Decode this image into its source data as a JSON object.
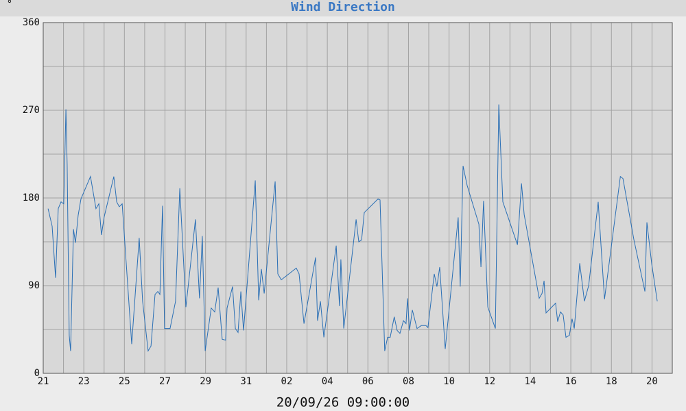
{
  "chart_data": {
    "type": "line",
    "title": "Wind Direction",
    "ylabel": "°",
    "xlabel": "20/09/26 09:00:00",
    "color": "#2a6fb5",
    "xlim": [
      0,
      31
    ],
    "xticks": [
      {
        "value": 0,
        "label": "21"
      },
      {
        "value": 2,
        "label": "23"
      },
      {
        "value": 4,
        "label": "25"
      },
      {
        "value": 6,
        "label": "27"
      },
      {
        "value": 8,
        "label": "29"
      },
      {
        "value": 10,
        "label": "31"
      },
      {
        "value": 12,
        "label": "02"
      },
      {
        "value": 14,
        "label": "04"
      },
      {
        "value": 16,
        "label": "06"
      },
      {
        "value": 18,
        "label": "08"
      },
      {
        "value": 20,
        "label": "10"
      },
      {
        "value": 22,
        "label": "12"
      },
      {
        "value": 24,
        "label": "14"
      },
      {
        "value": 26,
        "label": "16"
      },
      {
        "value": 28,
        "label": "18"
      },
      {
        "value": 30,
        "label": "20"
      }
    ],
    "minor_xticks": [
      1,
      3,
      5,
      7,
      9,
      11,
      13,
      15,
      17,
      19,
      21,
      23,
      25,
      27,
      29
    ],
    "ylim": [
      0,
      360
    ],
    "yticks": [
      0,
      90,
      180,
      270,
      360
    ],
    "minor_yticks": [
      45,
      135,
      225,
      315
    ],
    "grid": true,
    "x": [
      0.24,
      0.44,
      0.61,
      0.74,
      0.88,
      1.01,
      1.12,
      1.18,
      1.28,
      1.35,
      1.49,
      1.59,
      1.72,
      1.86,
      2.33,
      2.6,
      2.74,
      2.87,
      3.0,
      3.48,
      3.62,
      3.75,
      3.89,
      4.36,
      4.73,
      4.9,
      5.17,
      5.31,
      5.51,
      5.65,
      5.75,
      5.88,
      5.98,
      6.25,
      6.52,
      6.73,
      7.03,
      7.5,
      7.7,
      7.84,
      7.98,
      8.28,
      8.45,
      8.62,
      8.82,
      8.99,
      9.06,
      9.33,
      9.47,
      9.6,
      9.74,
      9.87,
      10.45,
      10.62,
      10.75,
      10.89,
      11.43,
      11.56,
      11.73,
      12.47,
      12.61,
      12.85,
      13.42,
      13.52,
      13.66,
      13.83,
      14.44,
      14.6,
      14.67,
      14.81,
      15.42,
      15.55,
      15.69,
      15.82,
      16.5,
      16.6,
      16.83,
      16.97,
      17.1,
      17.3,
      17.44,
      17.58,
      17.75,
      17.88,
      17.95,
      18.05,
      18.19,
      18.42,
      18.63,
      18.86,
      18.96,
      19.27,
      19.4,
      19.54,
      19.81,
      20.45,
      20.55,
      20.69,
      20.89,
      21.47,
      21.57,
      21.7,
      21.91,
      22.28,
      22.45,
      22.65,
      23.37,
      23.57,
      23.7,
      24.44,
      24.58,
      24.68,
      24.78,
      25.25,
      25.35,
      25.49,
      25.62,
      25.76,
      25.93,
      26.06,
      26.17,
      26.44,
      26.67,
      26.88,
      27.35,
      27.66,
      28.44,
      28.57,
      29.11,
      29.55,
      29.65,
      29.75,
      29.99,
      30.26
    ],
    "values": [
      169,
      151,
      98,
      169,
      176,
      174,
      271,
      214,
      39,
      23,
      148,
      134,
      162,
      179,
      202,
      169,
      174,
      142,
      160,
      202,
      176,
      171,
      174,
      30,
      139,
      74,
      23,
      28,
      81,
      84,
      81,
      172,
      46,
      46,
      74,
      190,
      68,
      158,
      77,
      141,
      23,
      67,
      63,
      88,
      35,
      34,
      67,
      89,
      46,
      42,
      84,
      44,
      198,
      75,
      107,
      82,
      197,
      102,
      96,
      108,
      102,
      51,
      119,
      54,
      74,
      37,
      131,
      69,
      117,
      46,
      158,
      135,
      137,
      165,
      179,
      178,
      23,
      37,
      37,
      58,
      44,
      41,
      54,
      51,
      77,
      44,
      65,
      46,
      49,
      49,
      47,
      102,
      89,
      109,
      25,
      160,
      89,
      213,
      193,
      153,
      109,
      177,
      68,
      46,
      276,
      176,
      132,
      195,
      163,
      77,
      82,
      95,
      62,
      72,
      53,
      63,
      60,
      37,
      39,
      56,
      46,
      113,
      74,
      90,
      176,
      76,
      202,
      200,
      137,
      94,
      84,
      155,
      112,
      74
    ]
  }
}
